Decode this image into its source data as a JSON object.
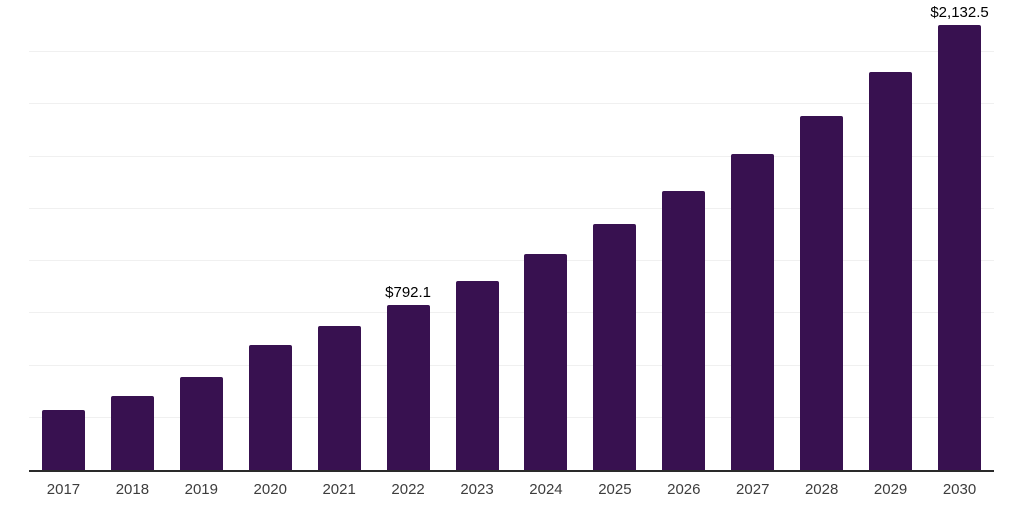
{
  "chart_data": {
    "type": "bar",
    "title": "",
    "xlabel": "",
    "ylabel": "",
    "categories": [
      "2017",
      "2018",
      "2019",
      "2020",
      "2021",
      "2022",
      "2023",
      "2024",
      "2025",
      "2026",
      "2027",
      "2028",
      "2029",
      "2030"
    ],
    "values": [
      285.7,
      354.5,
      445.8,
      598.3,
      689.7,
      792.1,
      906.1,
      1035.9,
      1175.4,
      1335.6,
      1510.6,
      1696.3,
      1905.0,
      2132.5
    ],
    "labeled_points": [
      {
        "category": "2022",
        "label": "$792.1"
      },
      {
        "category": "2030",
        "label": "$2,132.5"
      }
    ],
    "ylim": [
      0,
      2250
    ],
    "gridline_step": 250,
    "grid": "horizontal-only",
    "legend": "none",
    "y_axis_labels_visible": false,
    "colors": {
      "bar": "#381150",
      "axis_line": "#2a2a2a",
      "gridline": "#f0f0f0",
      "background": "#ffffff",
      "tick_label": "#3d3d3d",
      "data_label": "#000000"
    }
  }
}
